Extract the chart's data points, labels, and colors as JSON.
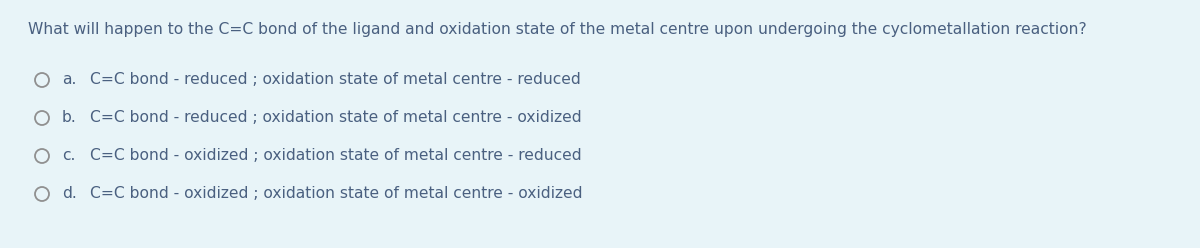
{
  "background_color": "#e8f4f8",
  "question": "What will happen to the C=C bond of the ligand and oxidation state of the metal centre upon undergoing the cyclometallation reaction?",
  "options": [
    {
      "label": "a.",
      "text": "C=C bond - reduced ; oxidation state of metal centre - reduced"
    },
    {
      "label": "b.",
      "text": "C=C bond - reduced ; oxidation state of metal centre - oxidized"
    },
    {
      "label": "c.",
      "text": "C=C bond - oxidized ; oxidation state of metal centre - reduced"
    },
    {
      "label": "d.",
      "text": "C=C bond - oxidized ; oxidation state of metal centre - oxidized"
    }
  ],
  "question_fontsize": 11.2,
  "option_fontsize": 11.2,
  "text_color": "#4a6080",
  "question_color": "#4a6080",
  "circle_color": "#909090",
  "fig_width": 12.0,
  "fig_height": 2.48,
  "dpi": 100
}
